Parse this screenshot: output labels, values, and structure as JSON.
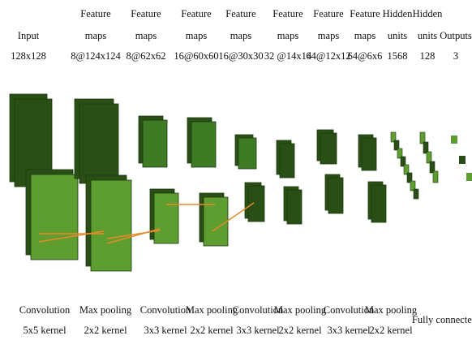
{
  "layers": [
    {
      "title": [
        "Input"
      ],
      "size": "128x128"
    },
    {
      "title": [
        "Feature",
        "maps"
      ],
      "size": "8@124x124"
    },
    {
      "title": [
        "Feature",
        "maps"
      ],
      "size": "8@62x62"
    },
    {
      "title": [
        "Feature",
        "maps"
      ],
      "size": "16@60x60"
    },
    {
      "title": [
        "Feature",
        "maps"
      ],
      "size": "16@30x30"
    },
    {
      "title": [
        "Feature",
        "maps"
      ],
      "size": "32 @14x14"
    },
    {
      "title": [
        "Feature",
        "maps"
      ],
      "size": "64@12x12"
    },
    {
      "title": [
        "Feature",
        "maps"
      ],
      "size": "64@6x6"
    },
    {
      "title": [
        "Hidden",
        "units"
      ],
      "size": "1568"
    },
    {
      "title": [
        "Hidden",
        "units"
      ],
      "size": "128"
    },
    {
      "title": [
        "Outputs"
      ],
      "size": "3"
    }
  ],
  "operations": [
    {
      "name": "Convolution",
      "kernel": "5x5 kernel"
    },
    {
      "name": "Max pooling",
      "kernel": "2x2 kernel"
    },
    {
      "name": "Convolution",
      "kernel": "3x3 kernel"
    },
    {
      "name": "Max pooling",
      "kernel": "2x2 kernel"
    },
    {
      "name": "Convolution",
      "kernel": "3x3 kernel"
    },
    {
      "name": "Max pooling",
      "kernel": "2x2 kernel"
    },
    {
      "name": "Convolution",
      "kernel": "3x3 kernel"
    },
    {
      "name": "Max pooling",
      "kernel": "2x2 kernel"
    },
    {
      "name": "Fully connected"
    }
  ]
}
